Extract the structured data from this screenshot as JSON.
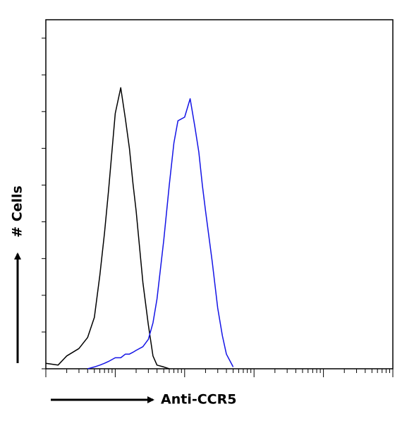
{
  "chart_data": {
    "type": "line",
    "xlabel": "Anti-CCR5",
    "ylabel": "# Cells",
    "xscale": "log",
    "xlim": [
      1,
      100000
    ],
    "ylim": [
      0,
      190
    ],
    "xticks": [
      1,
      2,
      3,
      4,
      5,
      6,
      7,
      8,
      9,
      10,
      20,
      30,
      40,
      50,
      60,
      70,
      80,
      90,
      100,
      200,
      300,
      400,
      500,
      600,
      700,
      800,
      900,
      1000,
      2000,
      3000,
      4000,
      5000,
      6000,
      7000,
      8000,
      9000,
      10000,
      20000,
      30000,
      40000,
      50000,
      60000,
      70000,
      80000,
      90000,
      100000
    ],
    "yticks": [
      0,
      20,
      40,
      60,
      80,
      100,
      120,
      140,
      160,
      180
    ],
    "x": [
      1,
      1.5,
      2,
      3,
      4,
      5,
      6,
      7,
      8,
      10,
      12,
      14,
      16,
      18,
      20,
      25,
      30,
      35,
      40,
      50,
      60,
      70,
      80,
      100,
      120,
      140,
      160,
      180,
      200,
      250,
      300,
      350,
      400,
      500
    ],
    "series": [
      {
        "color": "#000000",
        "values": [
          3,
          2,
          7,
          11,
          17,
          28,
          51,
          74,
          97,
          139,
          153,
          136,
          120,
          101,
          86,
          47,
          24,
          7,
          2,
          1,
          0,
          null,
          null,
          null,
          null,
          null,
          null,
          null,
          null,
          null,
          null,
          null,
          null,
          null
        ]
      },
      {
        "color": "#1414e6",
        "values": [
          null,
          null,
          null,
          null,
          0,
          1,
          2,
          3,
          4,
          6,
          6,
          8,
          8,
          9,
          10,
          12,
          16,
          25,
          38,
          70,
          100,
          123,
          135,
          137,
          147,
          132,
          118,
          100,
          86,
          58,
          33,
          18,
          8,
          1
        ]
      }
    ]
  }
}
